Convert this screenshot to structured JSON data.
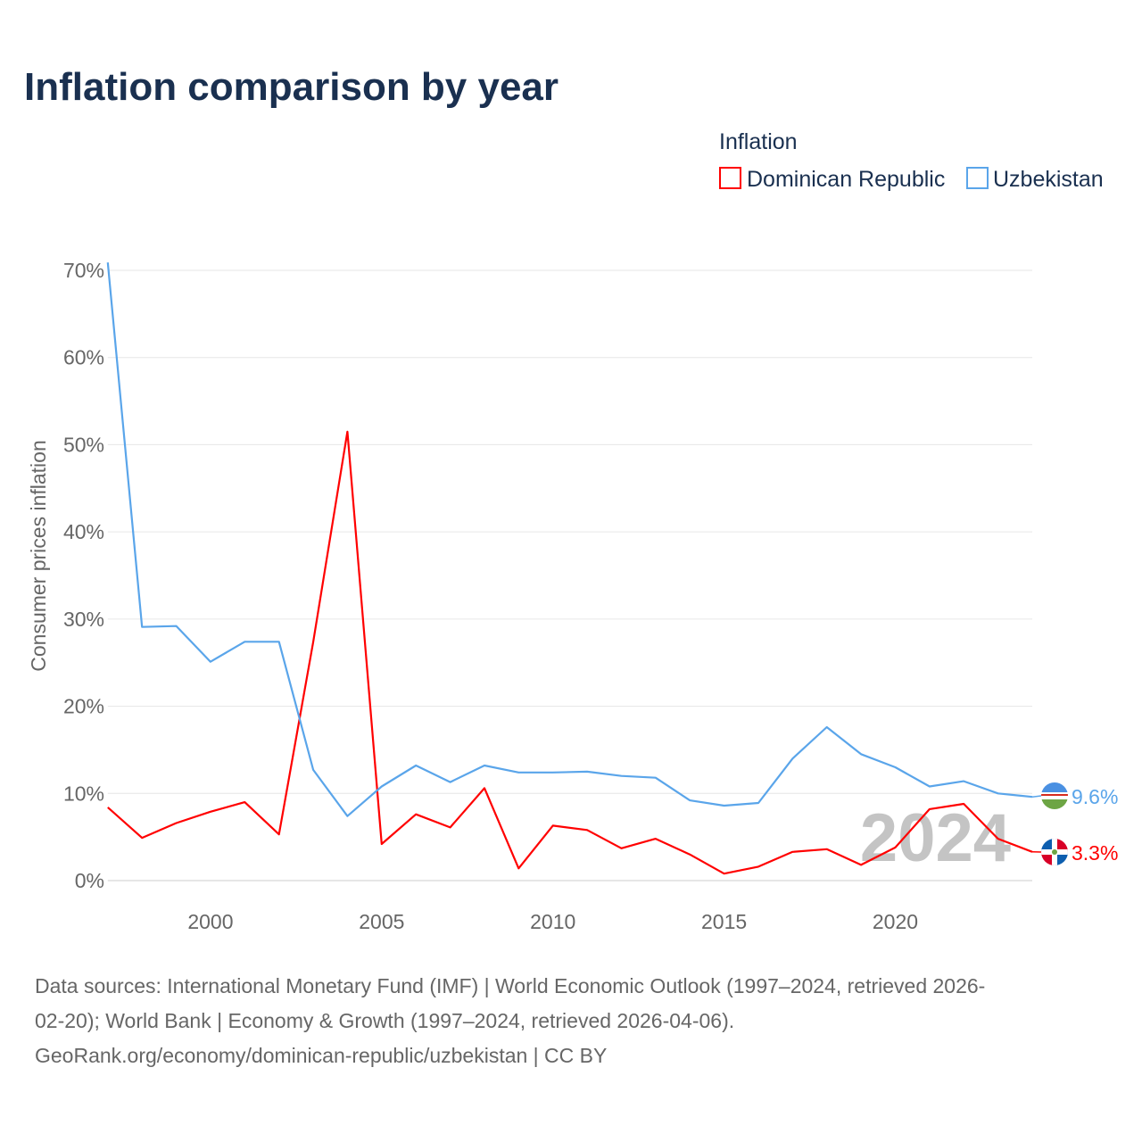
{
  "chart_data": {
    "type": "line",
    "title": "Inflation comparison by year",
    "legend_title": "Inflation",
    "legend_placement": "top-right",
    "ylabel": "Consumer prices inflation",
    "xlabel": "",
    "ylim": [
      0,
      70
    ],
    "xlim": [
      1997,
      2024
    ],
    "yticks": [
      0,
      10,
      20,
      30,
      40,
      50,
      60,
      70
    ],
    "ytick_labels": [
      "0%",
      "10%",
      "20%",
      "30%",
      "40%",
      "50%",
      "60%",
      "70%"
    ],
    "xticks": [
      2000,
      2005,
      2010,
      2015,
      2020
    ],
    "xtick_labels": [
      "2000",
      "2005",
      "2010",
      "2015",
      "2020"
    ],
    "grid": true,
    "year_watermark": "2024",
    "x": [
      1997,
      1998,
      1999,
      2000,
      2001,
      2002,
      2003,
      2004,
      2005,
      2006,
      2007,
      2008,
      2009,
      2010,
      2011,
      2012,
      2013,
      2014,
      2015,
      2016,
      2017,
      2018,
      2019,
      2020,
      2021,
      2022,
      2023,
      2024
    ],
    "series": [
      {
        "name": "Dominican Republic",
        "color": "#ff0000",
        "end_label": "3.3%",
        "values": [
          8.4,
          4.9,
          6.6,
          7.9,
          9.0,
          5.3,
          27.4,
          51.5,
          4.2,
          7.6,
          6.1,
          10.6,
          1.4,
          6.3,
          5.8,
          3.7,
          4.8,
          3.0,
          0.8,
          1.6,
          3.3,
          3.6,
          1.8,
          3.8,
          8.2,
          8.8,
          4.8,
          3.3
        ]
      },
      {
        "name": "Uzbekistan",
        "color": "#5aa5ea",
        "end_label": "9.6%",
        "values": [
          70.9,
          29.1,
          29.2,
          25.1,
          27.4,
          27.4,
          12.7,
          7.4,
          10.8,
          13.2,
          11.3,
          13.2,
          12.4,
          12.4,
          12.5,
          12.0,
          11.8,
          9.2,
          8.6,
          8.9,
          14.0,
          17.6,
          14.5,
          13.0,
          10.8,
          11.4,
          10.0,
          9.6
        ]
      }
    ]
  },
  "footer": {
    "line1": "Data sources: International Monetary Fund (IMF) | World Economic Outlook (1997–2024, retrieved 2026-",
    "line2": "02-20); World Bank | Economy & Growth (1997–2024, retrieved 2026-04-06).",
    "line3": "GeoRank.org/economy/dominican-republic/uzbekistan | CC BY"
  }
}
